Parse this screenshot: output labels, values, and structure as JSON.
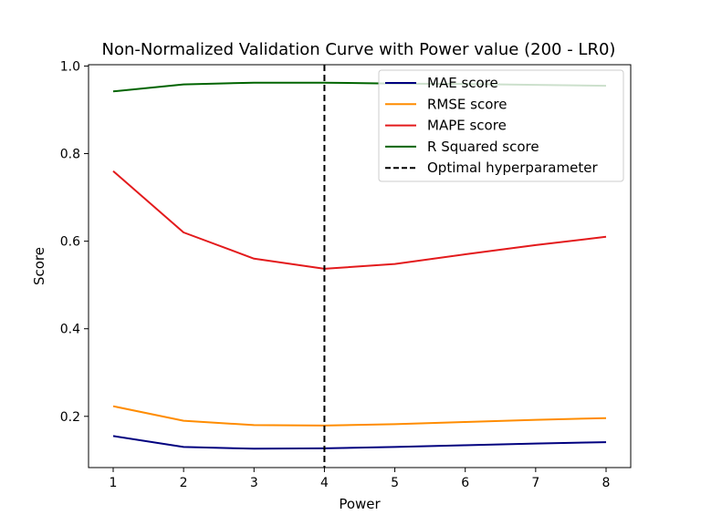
{
  "chart_data": {
    "type": "line",
    "title": "Non-Normalized Validation Curve with Power value (200 - LR0)",
    "xlabel": "Power",
    "ylabel": "Score",
    "x": [
      1,
      2,
      3,
      4,
      5,
      6,
      7,
      8
    ],
    "xlim": [
      0.65,
      8.35
    ],
    "ylim": [
      0.083,
      1.003
    ],
    "xticks": [
      "1",
      "2",
      "3",
      "4",
      "5",
      "6",
      "7",
      "8"
    ],
    "yticks": [
      "0.2",
      "0.4",
      "0.6",
      "0.8",
      "1.0"
    ],
    "grid": false,
    "legend_position": "top-right",
    "series": [
      {
        "name": "MAE score",
        "color": "#00007f",
        "values": [
          0.155,
          0.13,
          0.126,
          0.127,
          0.13,
          0.134,
          0.138,
          0.141
        ]
      },
      {
        "name": "RMSE score",
        "color": "#ff8c00",
        "values": [
          0.223,
          0.19,
          0.18,
          0.179,
          0.182,
          0.187,
          0.192,
          0.196
        ]
      },
      {
        "name": "MAPE score",
        "color": "#e31a1c",
        "values": [
          0.76,
          0.62,
          0.56,
          0.537,
          0.548,
          0.57,
          0.591,
          0.61
        ]
      },
      {
        "name": "R Squared score",
        "color": "#006400",
        "values": [
          0.942,
          0.958,
          0.962,
          0.962,
          0.96,
          0.959,
          0.957,
          0.955
        ]
      }
    ],
    "vline": {
      "name": "Optimal hyperparameter",
      "x": 4,
      "color": "#000000",
      "style": "dashed"
    }
  }
}
